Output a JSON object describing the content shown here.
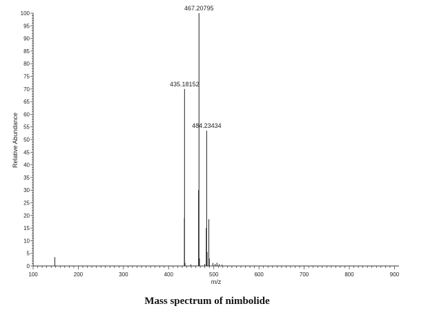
{
  "caption": "Mass spectrum of nimbolide",
  "chart_data": {
    "type": "bar",
    "title": "",
    "xlabel": "m/z",
    "ylabel": "Relative Abundance",
    "xlim": [
      100,
      910
    ],
    "ylim": [
      0,
      100
    ],
    "x_ticks": [
      100,
      200,
      300,
      400,
      500,
      600,
      700,
      800,
      900
    ],
    "y_ticks": [
      0,
      5,
      10,
      15,
      20,
      25,
      30,
      35,
      40,
      45,
      50,
      55,
      60,
      65,
      70,
      75,
      80,
      85,
      90,
      95,
      100
    ],
    "peaks": [
      {
        "mz": 148,
        "intensity": 3.5
      },
      {
        "mz": 434.8,
        "intensity": 19
      },
      {
        "mz": 435.18152,
        "intensity": 70,
        "label": "435.18152"
      },
      {
        "mz": 436.2,
        "intensity": 1.2
      },
      {
        "mz": 449,
        "intensity": 0.6
      },
      {
        "mz": 466.2,
        "intensity": 30
      },
      {
        "mz": 467.20795,
        "intensity": 100,
        "label": "467.20795"
      },
      {
        "mz": 468.2,
        "intensity": 3
      },
      {
        "mz": 480,
        "intensity": 0.8
      },
      {
        "mz": 483.3,
        "intensity": 15
      },
      {
        "mz": 484.23434,
        "intensity": 53.5,
        "label": "484.23434"
      },
      {
        "mz": 485.2,
        "intensity": 5.5
      },
      {
        "mz": 489,
        "intensity": 18.5
      },
      {
        "mz": 490,
        "intensity": 3
      },
      {
        "mz": 498,
        "intensity": 1.2
      },
      {
        "mz": 503,
        "intensity": 0.8
      },
      {
        "mz": 507,
        "intensity": 1.3
      },
      {
        "mz": 512,
        "intensity": 0.7
      },
      {
        "mz": 518,
        "intensity": 0.5
      }
    ]
  }
}
